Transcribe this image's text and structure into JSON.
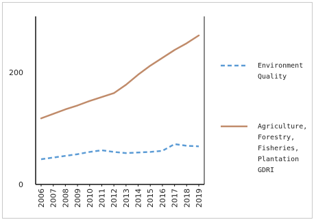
{
  "chart_data": {
    "type": "line",
    "title": "",
    "xlabel": "",
    "ylabel": "",
    "categories": [
      "2006",
      "2007",
      "2008",
      "2009",
      "2010",
      "2011",
      "2012",
      "2013",
      "2014",
      "2015",
      "2016",
      "2017",
      "2018",
      "2019"
    ],
    "ylim": [
      0,
      300
    ],
    "yticks": [
      "0",
      "200"
    ],
    "grid": false,
    "legend_position": "right",
    "series": [
      {
        "name_lines": [
          "Environment",
          "Quality"
        ],
        "style": "dashed",
        "color": "#5b9bd5",
        "values": [
          45,
          48,
          51,
          54,
          58,
          61,
          58,
          56,
          57,
          58,
          60,
          72,
          69,
          68
        ]
      },
      {
        "name_lines": [
          "Agriculture,",
          "Forestry,",
          "Fisheries,",
          "Plantation",
          "GDRI"
        ],
        "style": "solid",
        "color": "#c08b6a",
        "values": [
          118,
          126,
          134,
          141,
          149,
          156,
          163,
          178,
          196,
          212,
          226,
          240,
          252,
          266
        ]
      }
    ]
  }
}
